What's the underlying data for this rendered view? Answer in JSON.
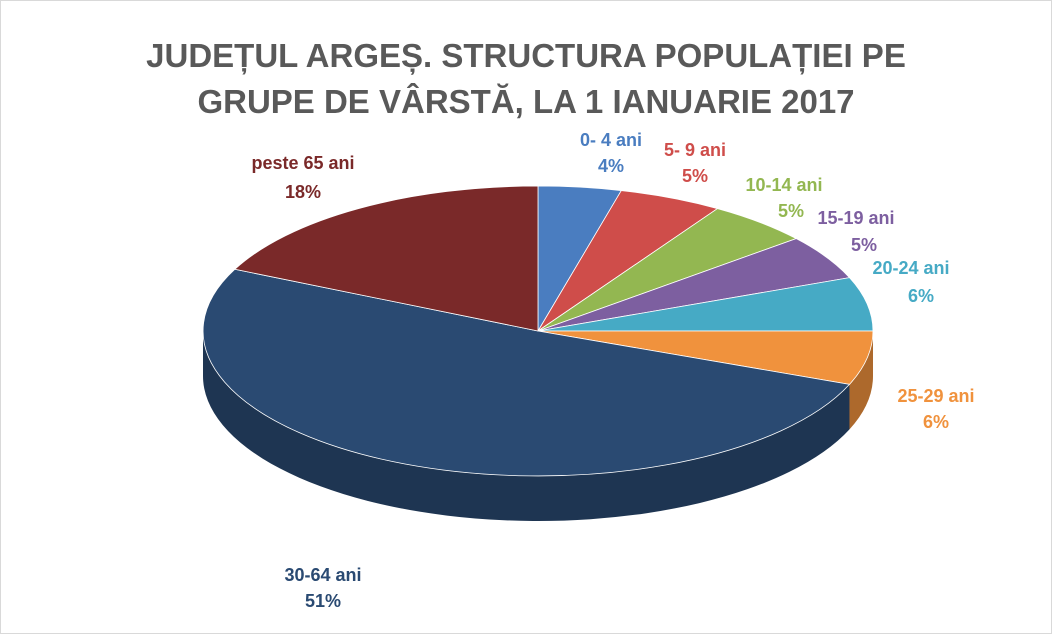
{
  "chart_data": {
    "type": "pie",
    "title": "JUDEȚUL ARGEȘ. STRUCTURA POPULAȚIEI PE GRUPE DE VÂRSTĂ, LA 1 IANUARIE 2017",
    "categories": [
      "0- 4 ani",
      "5- 9 ani",
      "10-14 ani",
      "15-19 ani",
      "20-24 ani",
      "25-29 ani",
      "30-64 ani",
      "peste 65 ani"
    ],
    "values": [
      4,
      5,
      5,
      5,
      6,
      6,
      51,
      18
    ],
    "value_labels": [
      "4%",
      "5%",
      "5%",
      "5%",
      "6%",
      "6%",
      "51%",
      "18%"
    ],
    "colors": [
      "#4a7dc0",
      "#cf4d4a",
      "#93b751",
      "#7d5fa0",
      "#46aac5",
      "#f0923d",
      "#2a4a72",
      "#7a2929"
    ]
  }
}
